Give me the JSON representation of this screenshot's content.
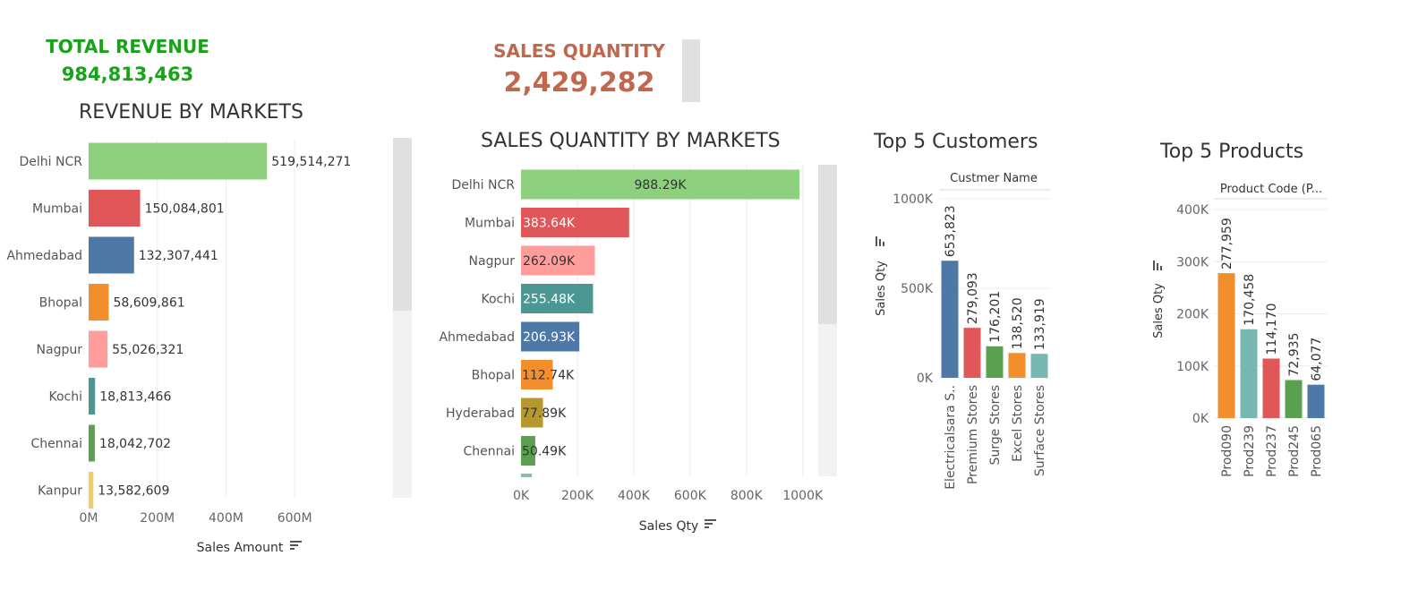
{
  "kpis": {
    "revenue": {
      "label": "TOTAL REVENUE",
      "value": "984,813,463",
      "color": "#17a317"
    },
    "quantity": {
      "label": "SALES QUANTITY",
      "value": "2,429,282",
      "color": "#c0674d"
    }
  },
  "titles": {
    "revenue_markets": "REVENUE BY MARKETS",
    "qty_markets": "SALES QUANTITY BY MARKETS",
    "customers": "Top 5 Customers",
    "products": "Top 5 Products"
  },
  "icons": {
    "sort": "sort-descending-icon"
  },
  "chart_data": [
    {
      "id": "revenue_by_markets",
      "type": "bar",
      "orientation": "horizontal",
      "title": "REVENUE BY MARKETS",
      "xlabel": "Sales Amount",
      "ylabel": "",
      "xlim": [
        0,
        760000000
      ],
      "x_ticks": [
        0,
        200000000,
        400000000,
        600000000
      ],
      "x_tick_labels": [
        "0M",
        "200M",
        "400M",
        "600M"
      ],
      "categories": [
        "Delhi NCR",
        "Mumbai",
        "Ahmedabad",
        "Bhopal",
        "Nagpur",
        "Kochi",
        "Chennai",
        "Kanpur"
      ],
      "values": [
        519514271,
        150084801,
        132307441,
        58609861,
        55026321,
        18813466,
        18042702,
        13582609
      ],
      "data_labels": [
        "519,514,271",
        "150,084,801",
        "132,307,441",
        "58,609,861",
        "55,026,321",
        "18,813,466",
        "18,042,702",
        "13,582,609"
      ],
      "colors": [
        "#8dd17e",
        "#e15759",
        "#4e79a7",
        "#f28e2b",
        "#ff9d9a",
        "#499894",
        "#59a14f",
        "#f1ce63"
      ],
      "grid": true
    },
    {
      "id": "sales_qty_by_markets",
      "type": "bar",
      "orientation": "horizontal",
      "title": "SALES QUANTITY BY MARKETS",
      "xlabel": "Sales Qty",
      "ylabel": "",
      "xlim": [
        0,
        1050000
      ],
      "x_ticks": [
        0,
        200000,
        400000,
        600000,
        800000,
        1000000
      ],
      "x_tick_labels": [
        "0K",
        "200K",
        "400K",
        "600K",
        "800K",
        "1000K"
      ],
      "categories": [
        "Delhi NCR",
        "Mumbai",
        "Nagpur",
        "Kochi",
        "Ahmedabad",
        "Bhopal",
        "Hyderabad",
        "Chennai"
      ],
      "values": [
        988290,
        383640,
        262090,
        255480,
        206930,
        112740,
        77890,
        50490
      ],
      "data_labels": [
        "988.29K",
        "383.64K",
        "262.09K",
        "255.48K",
        "206.93K",
        "112.74K",
        "77.89K",
        "50.49K"
      ],
      "colors": [
        "#8dd17e",
        "#e15759",
        "#ff9d9a",
        "#499894",
        "#4e79a7",
        "#f28e2b",
        "#b6992d",
        "#59a14f"
      ],
      "grid": true
    },
    {
      "id": "top5_customers",
      "type": "bar",
      "orientation": "vertical",
      "title": "Top 5 Customers",
      "header": "Custmer Name",
      "xlabel": "",
      "ylabel": "Sales Qty",
      "ylim": [
        0,
        1000000
      ],
      "y_ticks": [
        0,
        500000,
        1000000
      ],
      "y_tick_labels": [
        "0K",
        "500K",
        "1000K"
      ],
      "categories": [
        "Electricalsara S..",
        "Premium Stores",
        "Surge Stores",
        "Excel Stores",
        "Surface Stores"
      ],
      "values": [
        653823,
        279093,
        176201,
        138520,
        133919
      ],
      "data_labels": [
        "653,823",
        "279,093",
        "176,201",
        "138,520",
        "133,919"
      ],
      "colors": [
        "#4e79a7",
        "#e15759",
        "#59a14f",
        "#f28e2b",
        "#76b7b2"
      ],
      "grid": true
    },
    {
      "id": "top5_products",
      "type": "bar",
      "orientation": "vertical",
      "title": "Top 5 Products",
      "header": "Product Code (P...",
      "xlabel": "",
      "ylabel": "Sales Qty",
      "ylim": [
        0,
        400000
      ],
      "y_ticks": [
        0,
        100000,
        200000,
        300000,
        400000
      ],
      "y_tick_labels": [
        "0K",
        "100K",
        "200K",
        "300K",
        "400K"
      ],
      "categories": [
        "Prod090",
        "Prod239",
        "Prod237",
        "Prod245",
        "Prod065"
      ],
      "values": [
        277959,
        170458,
        114170,
        72935,
        64077
      ],
      "data_labels": [
        "277,959",
        "170,458",
        "114,170",
        "72,935",
        "64,077"
      ],
      "colors": [
        "#f28e2b",
        "#76b7b2",
        "#e15759",
        "#59a14f",
        "#4e79a7"
      ],
      "grid": true
    }
  ]
}
